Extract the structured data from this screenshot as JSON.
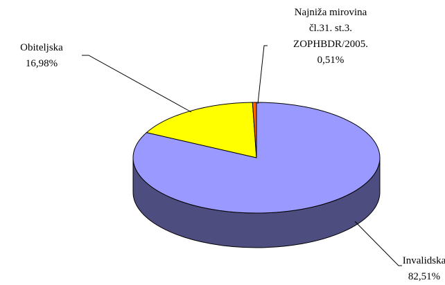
{
  "chart_data": {
    "type": "pie",
    "categories": [
      "Invalidska",
      "Obiteljska",
      "Najniža mirovina čl.31. st.3. ZOPHBDR/2005."
    ],
    "values": [
      82.51,
      16.98,
      0.51
    ],
    "value_labels": [
      "82,51%",
      "16,98%",
      "0,51%"
    ],
    "colors": [
      "#9999ff",
      "#ffff00",
      "#ff6600"
    ]
  }
}
